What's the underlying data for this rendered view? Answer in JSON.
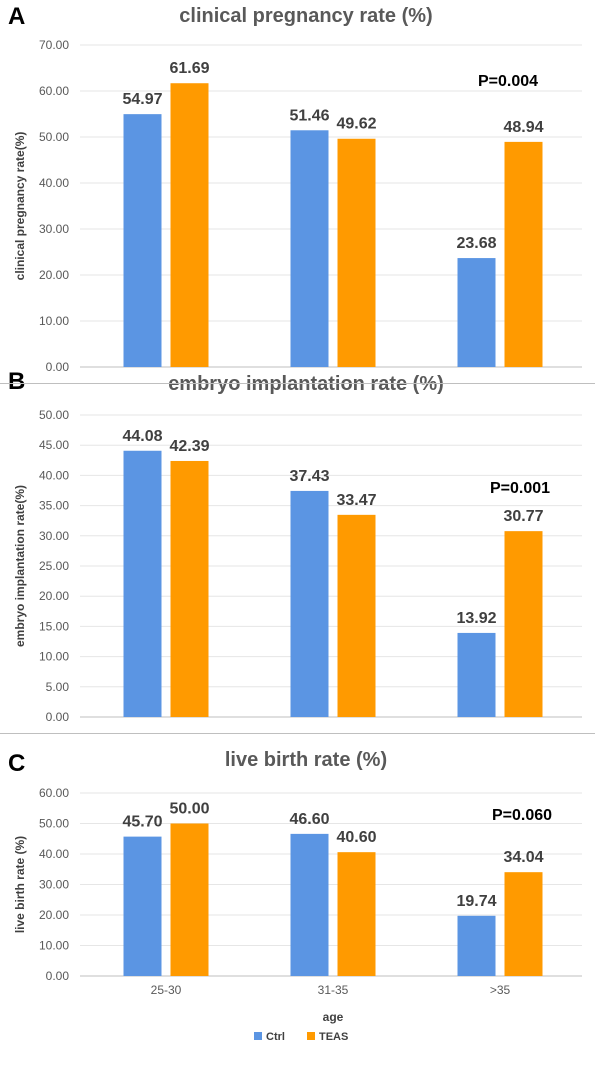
{
  "colors": {
    "ctrl": "#5b95e3",
    "teas": "#ff9a00",
    "axis": "#bfbfbf",
    "grid": "#e6e6e6",
    "text": "#404040",
    "tick": "#595959"
  },
  "chart_data": [
    {
      "type": "bar",
      "panel_letter": "A",
      "title": "clinical pregnancy rate (%)",
      "ylabel": "clinical pregnancy rate(%)",
      "xlabel": "",
      "ylim": [
        0,
        70
      ],
      "yticks": [
        "0.00",
        "10.00",
        "20.00",
        "30.00",
        "40.00",
        "50.00",
        "60.00",
        "70.00"
      ],
      "categories": [
        "25-30",
        "31-35",
        ">35"
      ],
      "show_category_labels": false,
      "series": [
        {
          "name": "Ctrl",
          "values": [
            54.97,
            51.46,
            23.68
          ],
          "labels": [
            "54.97",
            "51.46",
            "23.68"
          ]
        },
        {
          "name": "TEAS",
          "values": [
            61.69,
            49.62,
            48.94
          ],
          "labels": [
            "61.69",
            "49.62",
            "48.94"
          ]
        }
      ],
      "annotation": "P=0.004",
      "grid": true
    },
    {
      "type": "bar",
      "panel_letter": "B",
      "title": "embryo implantation rate (%)",
      "ylabel": "embryo implantation rate(%)",
      "xlabel": "",
      "ylim": [
        0,
        50
      ],
      "yticks": [
        "0.00",
        "5.00",
        "10.00",
        "15.00",
        "20.00",
        "25.00",
        "30.00",
        "35.00",
        "40.00",
        "45.00",
        "50.00"
      ],
      "categories": [
        "25-30",
        "31-35",
        ">35"
      ],
      "show_category_labels": false,
      "series": [
        {
          "name": "Ctrl",
          "values": [
            44.08,
            37.43,
            13.92
          ],
          "labels": [
            "44.08",
            "37.43",
            "13.92"
          ]
        },
        {
          "name": "TEAS",
          "values": [
            42.39,
            33.47,
            30.77
          ],
          "labels": [
            "42.39",
            "33.47",
            "30.77"
          ]
        }
      ],
      "annotation": "P=0.001",
      "grid": true
    },
    {
      "type": "bar",
      "panel_letter": "C",
      "title": "live birth rate (%)",
      "ylabel": "live birth rate (%)",
      "xlabel": "age",
      "ylim": [
        0,
        60
      ],
      "yticks": [
        "0.00",
        "10.00",
        "20.00",
        "30.00",
        "40.00",
        "50.00",
        "60.00"
      ],
      "categories": [
        "25-30",
        "31-35",
        ">35"
      ],
      "show_category_labels": true,
      "series": [
        {
          "name": "Ctrl",
          "values": [
            45.7,
            46.6,
            19.74
          ],
          "labels": [
            "45.70",
            "46.60",
            "19.74"
          ]
        },
        {
          "name": "TEAS",
          "values": [
            50.0,
            40.6,
            34.04
          ],
          "labels": [
            "50.00",
            "40.60",
            "34.04"
          ]
        }
      ],
      "annotation": "P=0.060",
      "grid": true
    }
  ],
  "legend": {
    "placement": "bottom",
    "items": [
      "Ctrl",
      "TEAS"
    ]
  }
}
